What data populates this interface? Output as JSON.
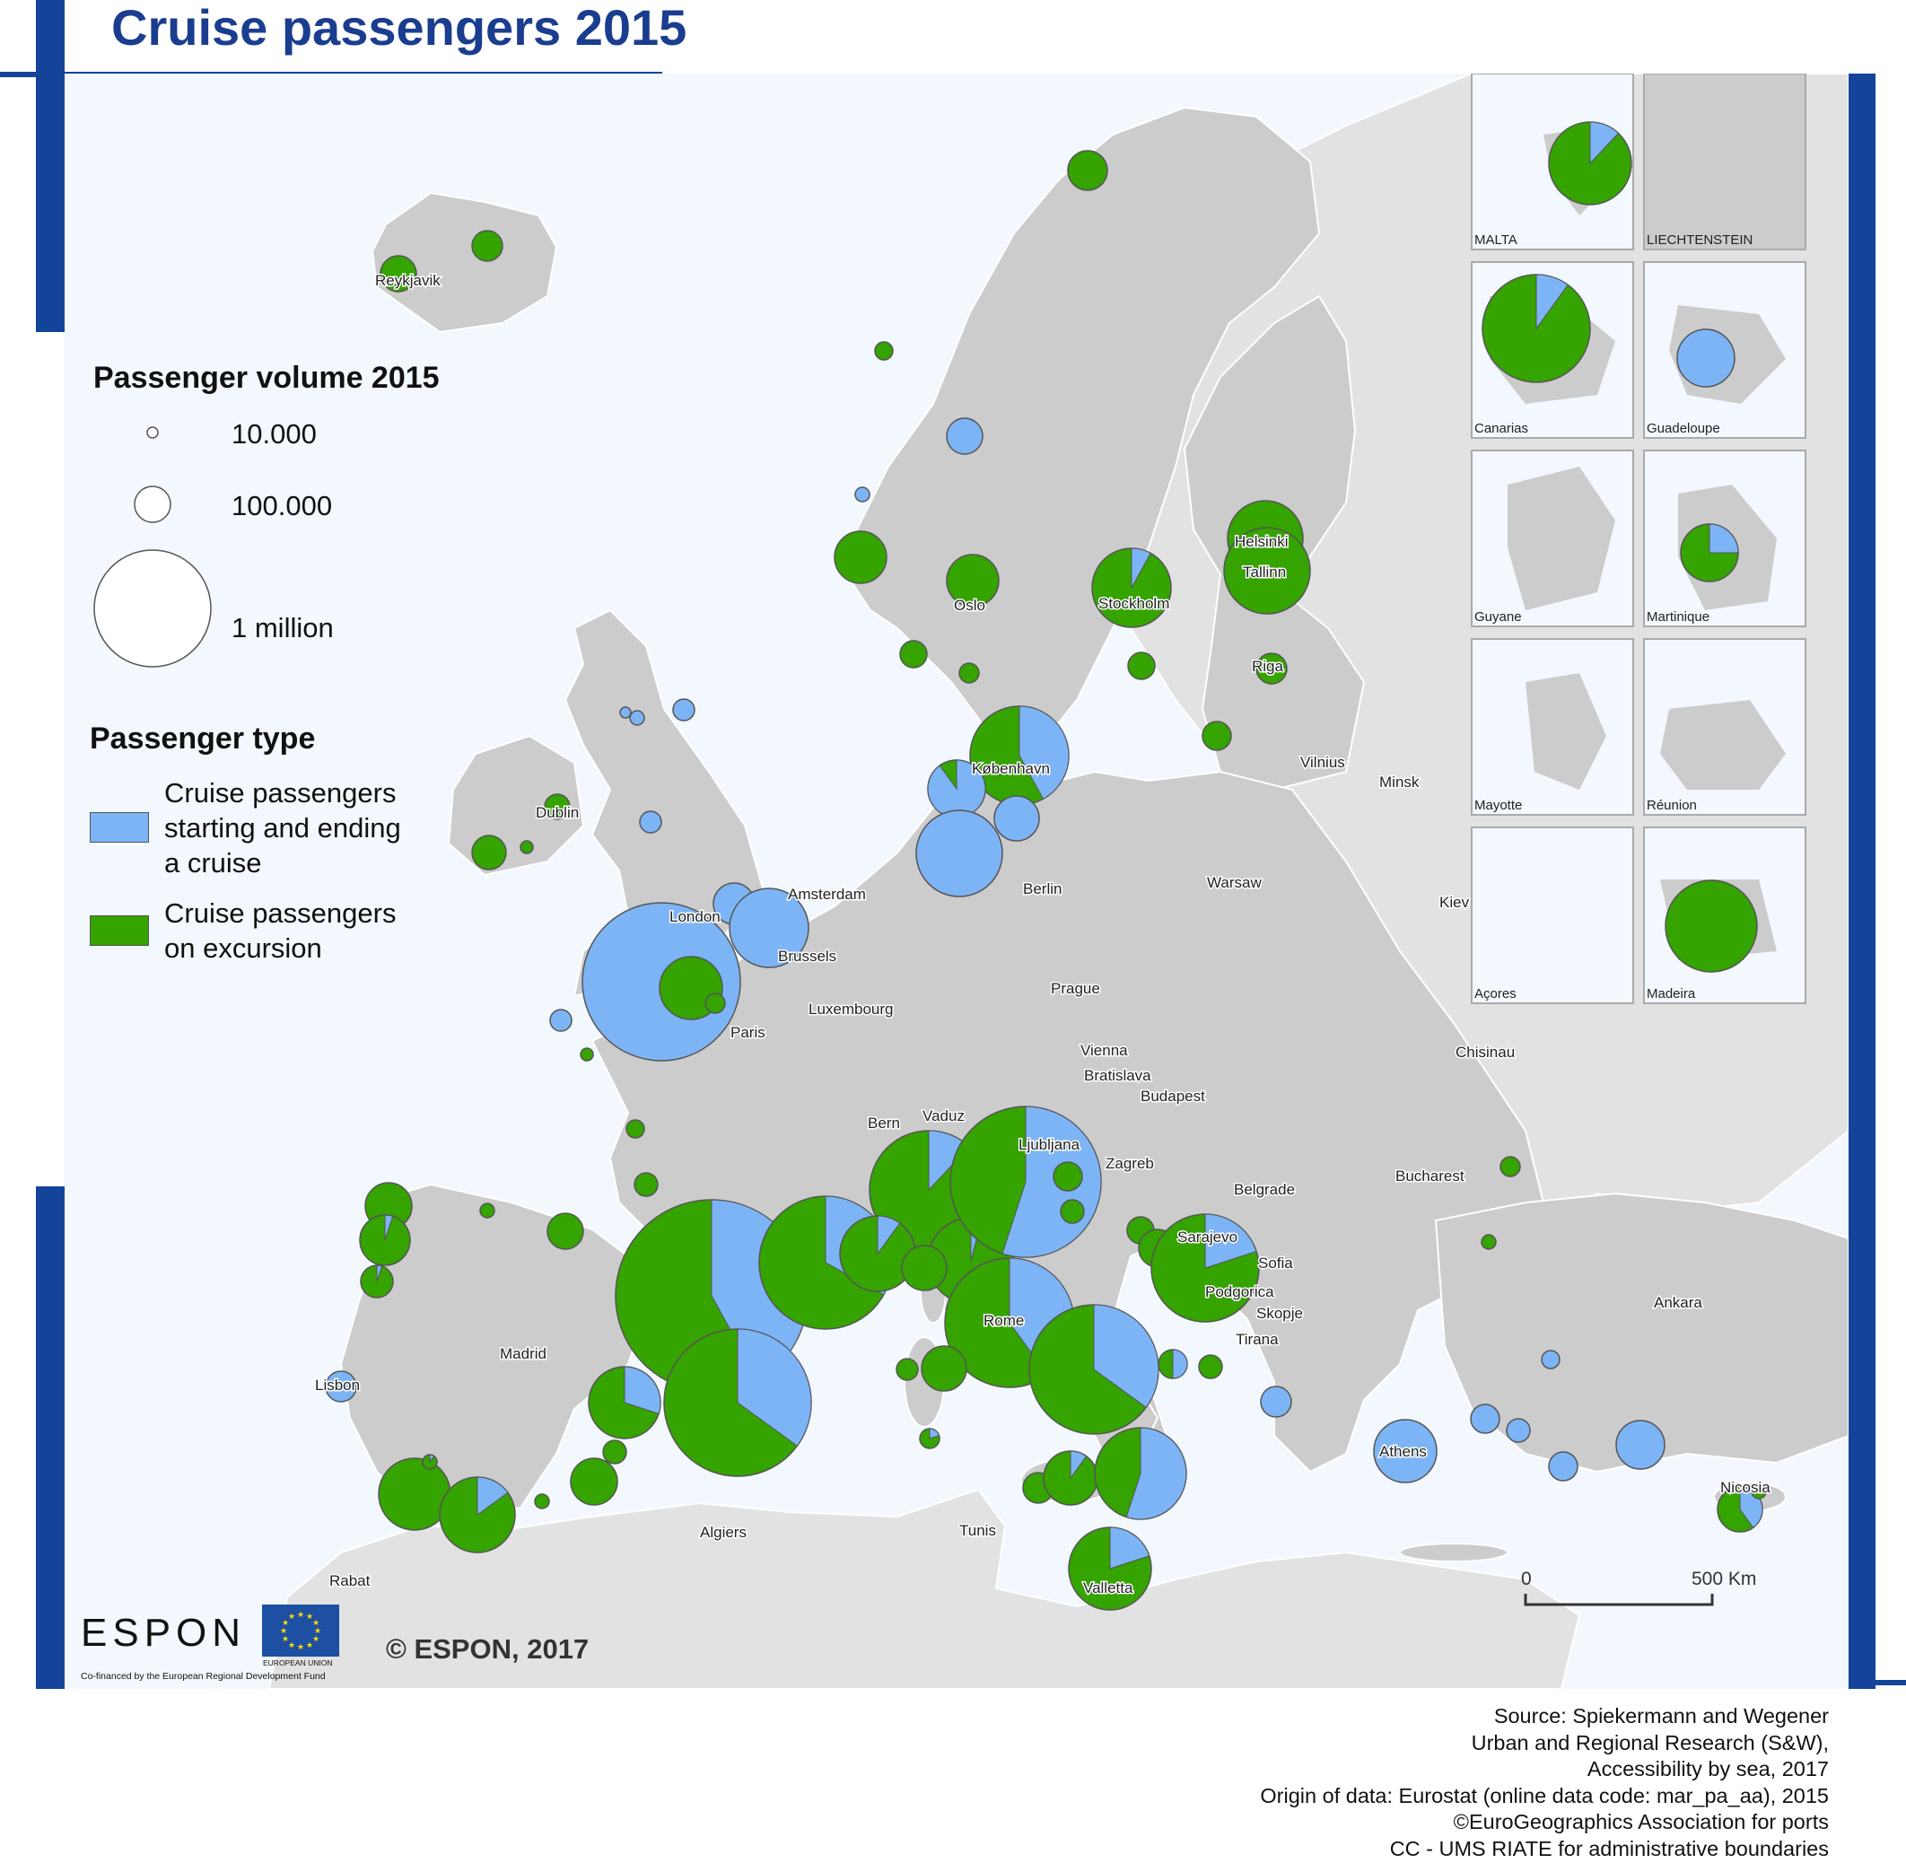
{
  "title": "Cruise passengers 2015",
  "legend": {
    "volume_title": "Passenger volume 2015",
    "sizes": [
      {
        "label": "10.000",
        "value": 10000
      },
      {
        "label": "100.000",
        "value": 100000
      },
      {
        "label": "1 million",
        "value": 1000000
      }
    ],
    "type_title": "Passenger type",
    "types": [
      {
        "label_lines": [
          "Cruise passengers",
          "starting and ending",
          "a cruise"
        ],
        "color": "#7db4f5"
      },
      {
        "label_lines": [
          "Cruise passengers",
          "on excursion"
        ],
        "color": "#35a300"
      }
    ]
  },
  "colors": {
    "sea": "#f2f8fd",
    "land": "#cccccc",
    "land_outside": "#e2e2e2",
    "border": "#ffffff",
    "starting": "#7db4f5",
    "excursion": "#35a300",
    "frame": "#14439a"
  },
  "cities": [
    "Reykjavik",
    "Oslo",
    "Stockholm",
    "Helsinki",
    "Tallinn",
    "Riga",
    "Vilnius",
    "Minsk",
    "København",
    "Dublin",
    "London",
    "Amsterdam",
    "Brussels",
    "Berlin",
    "Warsaw",
    "Kiev",
    "Prague",
    "Luxembourg",
    "Paris",
    "Vienna",
    "Bratislava",
    "Budapest",
    "Chisinau",
    "Bern",
    "Vaduz",
    "Ljubljana",
    "Zagreb",
    "Belgrade",
    "Bucharest",
    "Sarajevo",
    "Podgorica",
    "Sofia",
    "Skopje",
    "Tirana",
    "Rome",
    "Madrid",
    "Lisbon",
    "Ankara",
    "Athens",
    "Nicosia",
    "Algiers",
    "Tunis",
    "Valletta",
    "Rabat"
  ],
  "insets": [
    "MALTA",
    "LIECHTENSTEIN",
    "Canarias",
    "Guadeloupe",
    "Guyane",
    "Martinique",
    "Mayotte",
    "Réunion",
    "Açores",
    "Madeira"
  ],
  "scalebar": {
    "start": "0",
    "end": "500 Km"
  },
  "copyright": "© ESPON, 2017",
  "logo": {
    "espon": "ESPON",
    "cofinanced": "Co-financed by the European Regional Development Fund",
    "eu": "EUROPEAN UNION"
  },
  "source_lines": [
    "Source: Spiekermann and Wegener",
    "Urban and Regional Research (S&W),",
    "Accessibility by sea, 2017",
    "Origin of data: Eurostat (online data code: mar_pa_aa), 2015",
    "©EuroGeographics Association for ports",
    "CC - UMS RIATE for administrative boundaries"
  ]
}
